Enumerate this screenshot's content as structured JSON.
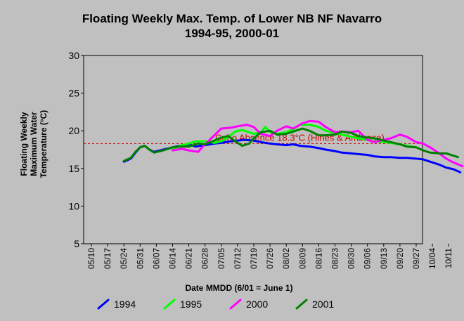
{
  "chart_data": {
    "type": "line",
    "title_line1": "Floating Weekly Max. Temp. of Lower NB NF Navarro",
    "title_line2": "1994-95, 2000-01",
    "xlabel": "Date MMDD (6/01 = June 1)",
    "ylabel_lines": [
      "Floating Weekly",
      "Maximum Water",
      "Temperature (°C)"
    ],
    "ylim": [
      5,
      30
    ],
    "yticks": [
      5,
      10,
      15,
      20,
      25,
      30
    ],
    "x_ticks": [
      "05/10",
      "05/17",
      "05/24",
      "05/31",
      "06/07",
      "06/14",
      "06/21",
      "06/28",
      "07/05",
      "07/12",
      "07/19",
      "07/26",
      "08/02",
      "08/09",
      "08/16",
      "08/23",
      "08/30",
      "09/06",
      "09/13",
      "09/20",
      "09/27",
      "10/04",
      "10/11"
    ],
    "threshold": {
      "value": 18.3,
      "label": "Coho Absence 18.3°C (Hines & Ambrose)",
      "color": "#cc0000"
    },
    "legend_position": "bottom",
    "series": [
      {
        "name": "1994",
        "color": "#0000ff",
        "points": [
          [
            14,
            15.9
          ],
          [
            17,
            16.3
          ],
          [
            19,
            17.1
          ],
          [
            21,
            17.8
          ],
          [
            23,
            18.0
          ],
          [
            25,
            17.5
          ],
          [
            27,
            17.2
          ],
          [
            31,
            17.5
          ],
          [
            35,
            17.8
          ],
          [
            38,
            18.0
          ],
          [
            42,
            18.2
          ],
          [
            45,
            17.9
          ],
          [
            49,
            18.1
          ],
          [
            53,
            18.3
          ],
          [
            56,
            18.4
          ],
          [
            60,
            18.6
          ],
          [
            63,
            18.7
          ],
          [
            66,
            18.8
          ],
          [
            70,
            18.7
          ],
          [
            73,
            18.5
          ],
          [
            77,
            18.3
          ],
          [
            80,
            18.2
          ],
          [
            84,
            18.1
          ],
          [
            87,
            18.2
          ],
          [
            90,
            18.0
          ],
          [
            94,
            17.9
          ],
          [
            98,
            17.7
          ],
          [
            101,
            17.5
          ],
          [
            105,
            17.3
          ],
          [
            108,
            17.1
          ],
          [
            112,
            17.0
          ],
          [
            115,
            16.9
          ],
          [
            119,
            16.8
          ],
          [
            122,
            16.6
          ],
          [
            126,
            16.5
          ],
          [
            129,
            16.5
          ],
          [
            133,
            16.4
          ],
          [
            136,
            16.4
          ],
          [
            140,
            16.3
          ],
          [
            143,
            16.2
          ],
          [
            146,
            15.9
          ],
          [
            150,
            15.5
          ],
          [
            153,
            15.1
          ],
          [
            156,
            14.9
          ],
          [
            159,
            14.5
          ]
        ]
      },
      {
        "name": "1995",
        "color": "#00ff00",
        "points": [
          [
            35,
            17.5
          ],
          [
            38,
            18.0
          ],
          [
            42,
            18.3
          ],
          [
            45,
            18.6
          ],
          [
            49,
            18.6
          ],
          [
            53,
            18.4
          ],
          [
            56,
            18.6
          ],
          [
            59,
            19.2
          ],
          [
            62,
            19.9
          ],
          [
            65,
            20.1
          ],
          [
            68,
            19.8
          ],
          [
            70,
            19.6
          ],
          [
            73,
            19.8
          ],
          [
            75,
            20.5
          ],
          [
            77,
            19.8
          ],
          [
            80,
            19.6
          ],
          [
            84,
            19.8
          ],
          [
            87,
            20.2
          ],
          [
            90,
            20.8
          ],
          [
            94,
            20.8
          ],
          [
            98,
            20.5
          ],
          [
            101,
            20.0
          ],
          [
            105,
            19.7
          ],
          [
            108,
            19.5
          ],
          [
            112,
            19.2
          ],
          [
            115,
            19.0
          ],
          [
            119,
            18.8
          ],
          [
            122,
            18.6
          ],
          [
            126,
            18.5
          ],
          [
            129,
            18.4
          ],
          [
            133,
            18.2
          ],
          [
            136,
            18.0
          ],
          [
            140,
            17.8
          ]
        ]
      },
      {
        "name": "2000",
        "color": "#ff00ff",
        "points": [
          [
            35,
            17.4
          ],
          [
            39,
            17.6
          ],
          [
            42,
            17.4
          ],
          [
            46,
            17.2
          ],
          [
            49,
            18.2
          ],
          [
            53,
            19.4
          ],
          [
            56,
            20.3
          ],
          [
            60,
            20.4
          ],
          [
            63,
            20.6
          ],
          [
            67,
            20.8
          ],
          [
            70,
            20.5
          ],
          [
            73,
            19.6
          ],
          [
            77,
            19.3
          ],
          [
            80,
            20.0
          ],
          [
            84,
            20.6
          ],
          [
            87,
            20.3
          ],
          [
            91,
            21.0
          ],
          [
            94,
            21.3
          ],
          [
            98,
            21.2
          ],
          [
            101,
            20.5
          ],
          [
            105,
            19.8
          ],
          [
            108,
            19.9
          ],
          [
            112,
            19.8
          ],
          [
            115,
            20.0
          ],
          [
            119,
            18.8
          ],
          [
            122,
            18.5
          ],
          [
            126,
            18.8
          ],
          [
            129,
            19.0
          ],
          [
            133,
            19.5
          ],
          [
            136,
            19.2
          ],
          [
            140,
            18.5
          ],
          [
            143,
            18.3
          ],
          [
            146,
            17.8
          ],
          [
            150,
            17.0
          ],
          [
            153,
            16.3
          ],
          [
            156,
            15.8
          ],
          [
            160,
            15.3
          ]
        ]
      },
      {
        "name": "2001",
        "color": "#008000",
        "points": [
          [
            14,
            16.0
          ],
          [
            17,
            16.4
          ],
          [
            19,
            17.2
          ],
          [
            21,
            17.8
          ],
          [
            23,
            18.0
          ],
          [
            25,
            17.5
          ],
          [
            27,
            17.1
          ],
          [
            31,
            17.4
          ],
          [
            35,
            17.8
          ],
          [
            38,
            17.9
          ],
          [
            42,
            17.9
          ],
          [
            46,
            18.3
          ],
          [
            49,
            18.2
          ],
          [
            53,
            18.7
          ],
          [
            56,
            19.1
          ],
          [
            59,
            19.3
          ],
          [
            62,
            18.6
          ],
          [
            65,
            18.0
          ],
          [
            68,
            18.3
          ],
          [
            70,
            19.0
          ],
          [
            73,
            19.8
          ],
          [
            77,
            20.0
          ],
          [
            80,
            19.5
          ],
          [
            84,
            19.6
          ],
          [
            87,
            19.9
          ],
          [
            91,
            20.3
          ],
          [
            94,
            20.0
          ],
          [
            98,
            19.4
          ],
          [
            101,
            19.4
          ],
          [
            105,
            19.5
          ],
          [
            108,
            19.9
          ],
          [
            112,
            19.7
          ],
          [
            115,
            19.3
          ],
          [
            119,
            19.1
          ],
          [
            122,
            19.0
          ],
          [
            126,
            18.7
          ],
          [
            129,
            18.5
          ],
          [
            133,
            18.2
          ],
          [
            136,
            17.9
          ],
          [
            140,
            17.8
          ],
          [
            143,
            17.4
          ],
          [
            146,
            17.1
          ],
          [
            150,
            17.0
          ],
          [
            153,
            17.0
          ],
          [
            156,
            16.7
          ],
          [
            158,
            16.5
          ]
        ]
      }
    ]
  }
}
